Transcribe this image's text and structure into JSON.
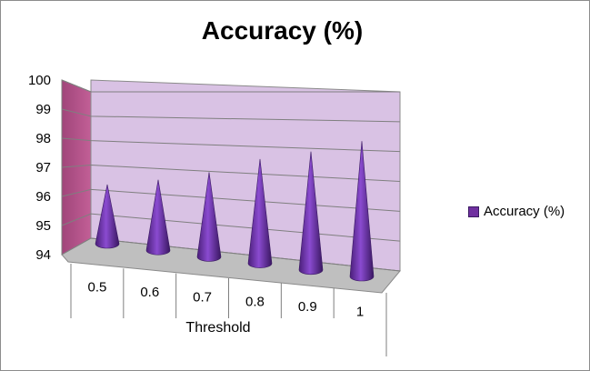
{
  "chart_data": {
    "type": "bar",
    "title": "Accuracy (%)",
    "xlabel": "Threshold",
    "ylabel": "",
    "categories": [
      "0.5",
      "0.6",
      "0.7",
      "0.8",
      "0.9",
      "1"
    ],
    "series": [
      {
        "name": "Accuracy (%)",
        "values": [
          96.1,
          96.5,
          97.0,
          97.7,
          98.2,
          98.8
        ]
      }
    ],
    "y_ticks": [
      "94",
      "95",
      "96",
      "97",
      "98",
      "99",
      "100"
    ],
    "ylim": [
      94,
      100
    ],
    "grid": true,
    "legend": "right",
    "colors": {
      "cone": "#7030a0",
      "back_wall": "#d9c2e4",
      "side_wall": "#b0528a",
      "floor": "#bfbfbf"
    }
  }
}
